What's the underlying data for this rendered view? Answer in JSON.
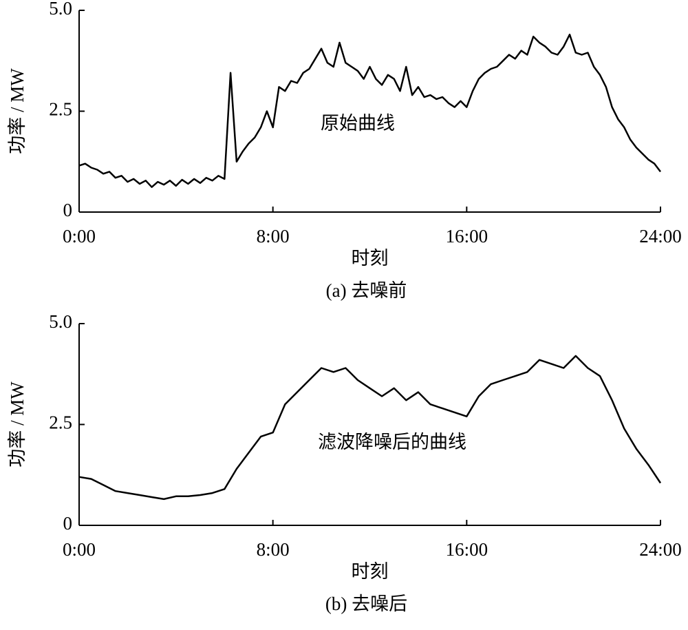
{
  "chart_data": [
    {
      "type": "line",
      "caption": "(a) 去噪前",
      "annotation": "原始曲线",
      "xlabel": "时刻",
      "ylabel": "功率 / MW",
      "xlim": [
        0,
        24
      ],
      "xticks": [
        {
          "value": 0,
          "label": "0:00"
        },
        {
          "value": 8,
          "label": "8:00"
        },
        {
          "value": 16,
          "label": "16:00"
        },
        {
          "value": 24,
          "label": "24:00"
        }
      ],
      "ylim": [
        0,
        5
      ],
      "yticks": [
        0,
        2.5,
        {
          "value": 5,
          "label": "5.0"
        }
      ],
      "x": [
        0,
        0.25,
        0.5,
        0.75,
        1,
        1.25,
        1.5,
        1.75,
        2,
        2.25,
        2.5,
        2.75,
        3,
        3.25,
        3.5,
        3.75,
        4,
        4.25,
        4.5,
        4.75,
        5,
        5.25,
        5.5,
        5.75,
        6,
        6.25,
        6.5,
        6.75,
        7,
        7.25,
        7.5,
        7.75,
        8,
        8.25,
        8.5,
        8.75,
        9,
        9.25,
        9.5,
        9.75,
        10,
        10.25,
        10.5,
        10.75,
        11,
        11.25,
        11.5,
        11.75,
        12,
        12.25,
        12.5,
        12.75,
        13,
        13.25,
        13.5,
        13.75,
        14,
        14.25,
        14.5,
        14.75,
        15,
        15.25,
        15.5,
        15.75,
        16,
        16.25,
        16.5,
        16.75,
        17,
        17.25,
        17.5,
        17.75,
        18,
        18.25,
        18.5,
        18.75,
        19,
        19.25,
        19.5,
        19.75,
        20,
        20.25,
        20.5,
        20.75,
        21,
        21.25,
        21.5,
        21.75,
        22,
        22.25,
        22.5,
        22.75,
        23,
        23.25,
        23.5,
        23.75,
        24
      ],
      "series": [
        {
          "color": "#000000",
          "values": [
            1.15,
            1.2,
            1.1,
            1.05,
            0.95,
            1.0,
            0.85,
            0.9,
            0.75,
            0.82,
            0.7,
            0.78,
            0.62,
            0.75,
            0.68,
            0.78,
            0.65,
            0.8,
            0.7,
            0.82,
            0.72,
            0.85,
            0.78,
            0.9,
            0.82,
            3.45,
            1.25,
            1.5,
            1.7,
            1.85,
            2.1,
            2.5,
            2.1,
            3.1,
            3.0,
            3.25,
            3.2,
            3.45,
            3.55,
            3.8,
            4.05,
            3.7,
            3.6,
            4.2,
            3.7,
            3.6,
            3.5,
            3.3,
            3.6,
            3.3,
            3.15,
            3.4,
            3.3,
            3.0,
            3.6,
            2.9,
            3.1,
            2.85,
            2.9,
            2.8,
            2.85,
            2.7,
            2.6,
            2.75,
            2.6,
            3.0,
            3.3,
            3.45,
            3.55,
            3.6,
            3.75,
            3.9,
            3.8,
            4.0,
            3.9,
            4.35,
            4.2,
            4.1,
            3.95,
            3.9,
            4.1,
            4.4,
            3.95,
            3.9,
            3.95,
            3.6,
            3.4,
            3.1,
            2.6,
            2.3,
            2.1,
            1.8,
            1.6,
            1.45,
            1.3,
            1.2,
            1.0
          ]
        }
      ]
    },
    {
      "type": "line",
      "caption": "(b) 去噪后",
      "annotation": "滤波降噪后的曲线",
      "xlabel": "时刻",
      "ylabel": "功率 / MW",
      "xlim": [
        0,
        24
      ],
      "xticks": [
        {
          "value": 0,
          "label": "0:00"
        },
        {
          "value": 8,
          "label": "8:00"
        },
        {
          "value": 16,
          "label": "16:00"
        },
        {
          "value": 24,
          "label": "24:00"
        }
      ],
      "ylim": [
        0,
        5
      ],
      "yticks": [
        0,
        2.5,
        {
          "value": 5,
          "label": "5.0"
        }
      ],
      "x": [
        0,
        0.5,
        1,
        1.5,
        2,
        2.5,
        3,
        3.5,
        4,
        4.5,
        5,
        5.5,
        6,
        6.5,
        7,
        7.5,
        8,
        8.5,
        9,
        9.5,
        10,
        10.5,
        11,
        11.5,
        12,
        12.5,
        13,
        13.5,
        14,
        14.5,
        15,
        15.5,
        16,
        16.5,
        17,
        17.5,
        18,
        18.5,
        19,
        19.5,
        20,
        20.5,
        21,
        21.5,
        22,
        22.5,
        23,
        23.5,
        24
      ],
      "series": [
        {
          "color": "#000000",
          "values": [
            1.2,
            1.15,
            1.0,
            0.85,
            0.8,
            0.75,
            0.7,
            0.65,
            0.72,
            0.72,
            0.75,
            0.8,
            0.9,
            1.4,
            1.8,
            2.2,
            2.3,
            3.0,
            3.3,
            3.6,
            3.9,
            3.8,
            3.9,
            3.6,
            3.4,
            3.2,
            3.4,
            3.1,
            3.3,
            3.0,
            2.9,
            2.8,
            2.7,
            3.2,
            3.5,
            3.6,
            3.7,
            3.8,
            4.1,
            4.0,
            3.9,
            4.2,
            3.9,
            3.7,
            3.1,
            2.4,
            1.9,
            1.5,
            1.05
          ]
        }
      ]
    }
  ]
}
